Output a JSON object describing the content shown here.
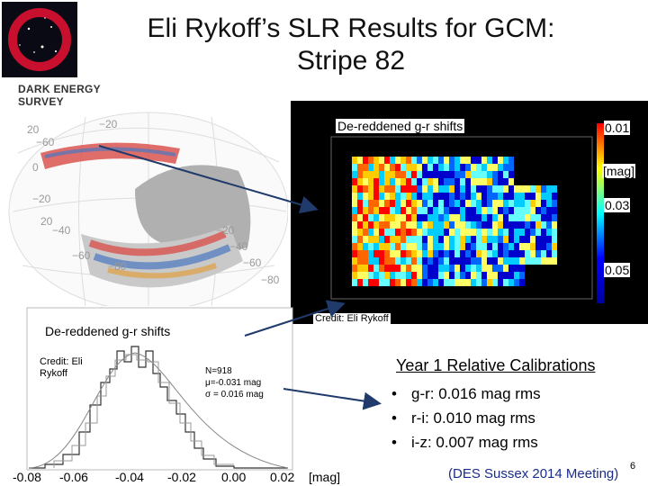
{
  "slide": {
    "title_line1": "Eli Rykoff’s SLR Results for GCM:",
    "title_line2": "Stripe 82",
    "brand_line1": "DARK ENERGY",
    "brand_line2": "SURVEY"
  },
  "heatmap": {
    "title": "De-reddened g-r shifts",
    "colorbar_labels": [
      "0.01",
      "[mag]",
      "0.03",
      "0.05"
    ],
    "credit": "Credit: Eli Rykoff"
  },
  "histogram": {
    "title": "De-reddened g-r shifts",
    "credit": "Credit: Eli Rykoff",
    "stats": [
      "N=918",
      "μ=-0.031 mag",
      "σ = 0.016 mag"
    ],
    "x_ticks": [
      "-0.08",
      "-0.06",
      "-0.04",
      "-0.02",
      "0.00",
      "0.02"
    ],
    "x_unit": "[mag]"
  },
  "sky_map": {
    "labels": [
      "20",
      "−20",
      "−60",
      "−20",
      "−40",
      "−60",
      "−80",
      "−20",
      "−40",
      "−60",
      "−80",
      "0",
      "20"
    ]
  },
  "calibrations": {
    "title": "Year 1 Relative Calibrations",
    "items": [
      "g-r: 0.016 mag rms",
      "r-i:  0.010 mag rms",
      "i-z:  0.007 mag rms"
    ]
  },
  "footer": {
    "meeting": "(DES Sussex 2014 Meeting)",
    "page": "6"
  }
}
